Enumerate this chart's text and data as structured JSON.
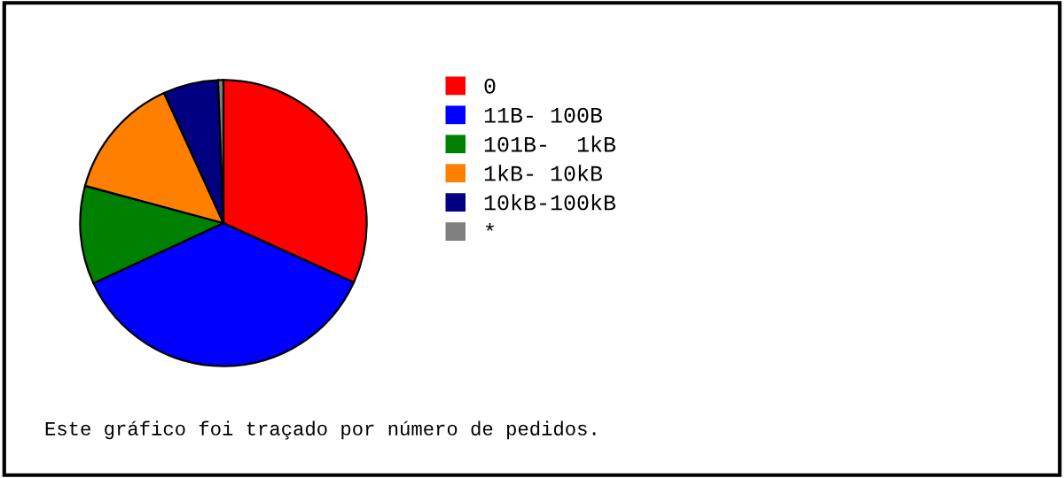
{
  "chart_data": {
    "type": "pie",
    "categories": [
      "0",
      "11B- 100B",
      "101B-  1kB",
      "1kB- 10kB",
      "10kB-100kB",
      "*"
    ],
    "values": [
      31.8,
      36.3,
      11.1,
      14.0,
      6.2,
      0.6
    ],
    "colors": [
      "#ff0000",
      "#0000ff",
      "#008000",
      "#ff8000",
      "#000080",
      "#808080"
    ],
    "legend": "right",
    "annotations": [
      "Este gráfico foi traçado por número de pedidos."
    ]
  }
}
